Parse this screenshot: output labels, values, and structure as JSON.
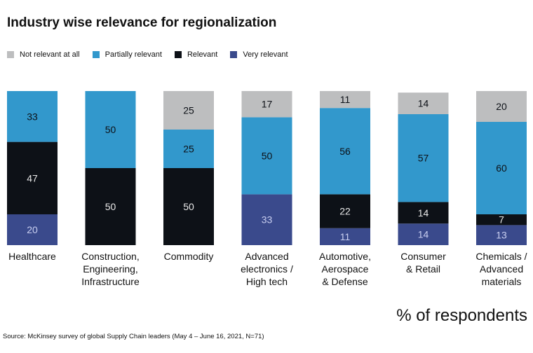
{
  "chart_data": {
    "type": "bar",
    "stacked": true,
    "title": "Industry wise relevance for regionalization",
    "ylabel": "% of respondents",
    "categories": [
      "Healthcare",
      "Construction,\nEngineering,\nInfrastructure",
      "Commodity",
      "Advanced\nelectronics /\nHigh tech",
      "Automotive,\nAerospace\n& Defense",
      "Consumer\n& Retail",
      "Chemicals /\nAdvanced\nmaterials"
    ],
    "series": [
      {
        "name": "Very relevant",
        "color": "#3a4a8c",
        "label_color": "#c9cff0",
        "values": [
          20,
          0,
          0,
          33,
          11,
          14,
          13
        ]
      },
      {
        "name": "Relevant",
        "color": "#0d1117",
        "label_color": "#e8e8e8",
        "values": [
          47,
          50,
          50,
          0,
          22,
          14,
          7
        ]
      },
      {
        "name": "Partially relevant",
        "color": "#3298cc",
        "label_color": "#0d1117",
        "values": [
          33,
          50,
          25,
          50,
          56,
          57,
          60
        ]
      },
      {
        "name": "Not relevant at all",
        "color": "#bdbebf",
        "label_color": "#0d1117",
        "values": [
          0,
          0,
          25,
          17,
          11,
          14,
          20
        ]
      }
    ],
    "legend_order": [
      "Not relevant at all",
      "Partially relevant",
      "Relevant",
      "Very relevant"
    ],
    "ylim": [
      0,
      100
    ],
    "grid": false,
    "legend_position": "top-left"
  },
  "source": "Source: McKinsey survey of global Supply Chain leaders (May 4 – June 16, 2021, N=71)"
}
